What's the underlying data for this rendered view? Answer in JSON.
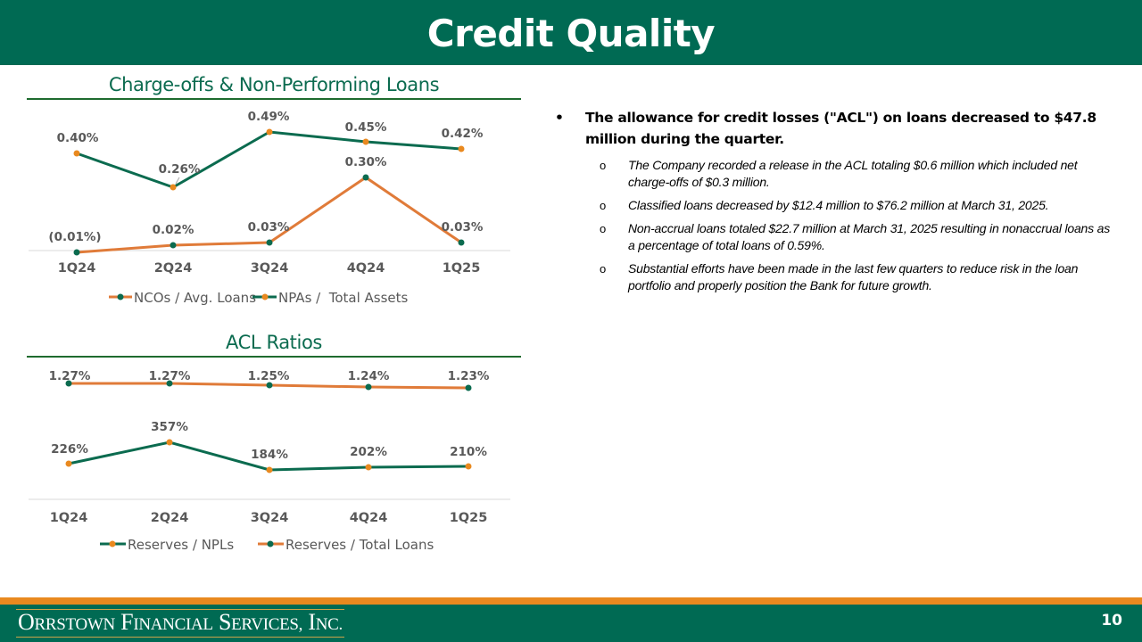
{
  "page": {
    "title": "Credit Quality",
    "page_number": "10",
    "company": "Orrstown Financial Services, Inc.",
    "colors": {
      "green": "#006A53",
      "orange": "#E9891F",
      "line_orange": "#E07B39",
      "line_green": "#0B6B4F"
    }
  },
  "chart1": {
    "title": "Charge-offs & Non-Performing Loans",
    "categories": [
      "1Q24",
      "2Q24",
      "3Q24",
      "4Q24",
      "1Q25"
    ],
    "npa_labels": [
      "0.40%",
      "0.26%",
      "0.49%",
      "0.45%",
      "0.42%"
    ],
    "nco_labels": [
      "(0.01%)",
      "0.02%",
      "0.03%",
      "0.30%",
      "0.03%"
    ],
    "legend": [
      "NCOs / Avg. Loans",
      "NPAs /  Total Assets"
    ]
  },
  "chart2": {
    "title": "ACL Ratios",
    "categories": [
      "1Q24",
      "2Q24",
      "3Q24",
      "4Q24",
      "1Q25"
    ],
    "acl_labels": [
      "1.27%",
      "1.27%",
      "1.25%",
      "1.24%",
      "1.23%"
    ],
    "npl_labels": [
      "226%",
      "357%",
      "184%",
      "202%",
      "210%"
    ],
    "legend": [
      "Reserves / NPLs",
      "Reserves / Total Loans"
    ]
  },
  "bullets": {
    "main": "The allowance for credit losses (\"ACL\") on loans decreased to $47.8 million during the quarter.",
    "sub": [
      "The Company recorded a release in the ACL totaling $0.6 million which included net charge-offs of $0.3 million.",
      "Classified loans decreased by $12.4 million to $76.2 million at March 31, 2025.",
      "Non-accrual loans totaled $22.7 million at March 31, 2025 resulting in nonaccrual loans as a percentage of total loans of 0.59%.",
      "Substantial efforts have been made in the last few quarters to reduce risk in the loan portfolio and properly position the Bank for future growth."
    ],
    "sub_marker": "o"
  },
  "chart_data": [
    {
      "type": "line",
      "title": "Charge-offs & Non-Performing Loans",
      "categories": [
        "1Q24",
        "2Q24",
        "3Q24",
        "4Q24",
        "1Q25"
      ],
      "series": [
        {
          "name": "NCOs / Avg. Loans",
          "values": [
            -0.01,
            0.02,
            0.03,
            0.3,
            0.03
          ],
          "unit": "%"
        },
        {
          "name": "NPAs /  Total Assets",
          "values": [
            0.4,
            0.26,
            0.49,
            0.45,
            0.42
          ],
          "unit": "%"
        }
      ],
      "xlabel": "",
      "ylabel": "",
      "grid": false,
      "legend_position": "bottom"
    },
    {
      "type": "line",
      "title": "ACL Ratios",
      "categories": [
        "1Q24",
        "2Q24",
        "3Q24",
        "4Q24",
        "1Q25"
      ],
      "series": [
        {
          "name": "Reserves / NPLs",
          "values": [
            226,
            357,
            184,
            202,
            210
          ],
          "unit": "%"
        },
        {
          "name": "Reserves / Total Loans",
          "values": [
            1.27,
            1.27,
            1.25,
            1.24,
            1.23
          ],
          "unit": "%"
        }
      ],
      "xlabel": "",
      "ylabel": "",
      "grid": false,
      "legend_position": "bottom"
    }
  ]
}
